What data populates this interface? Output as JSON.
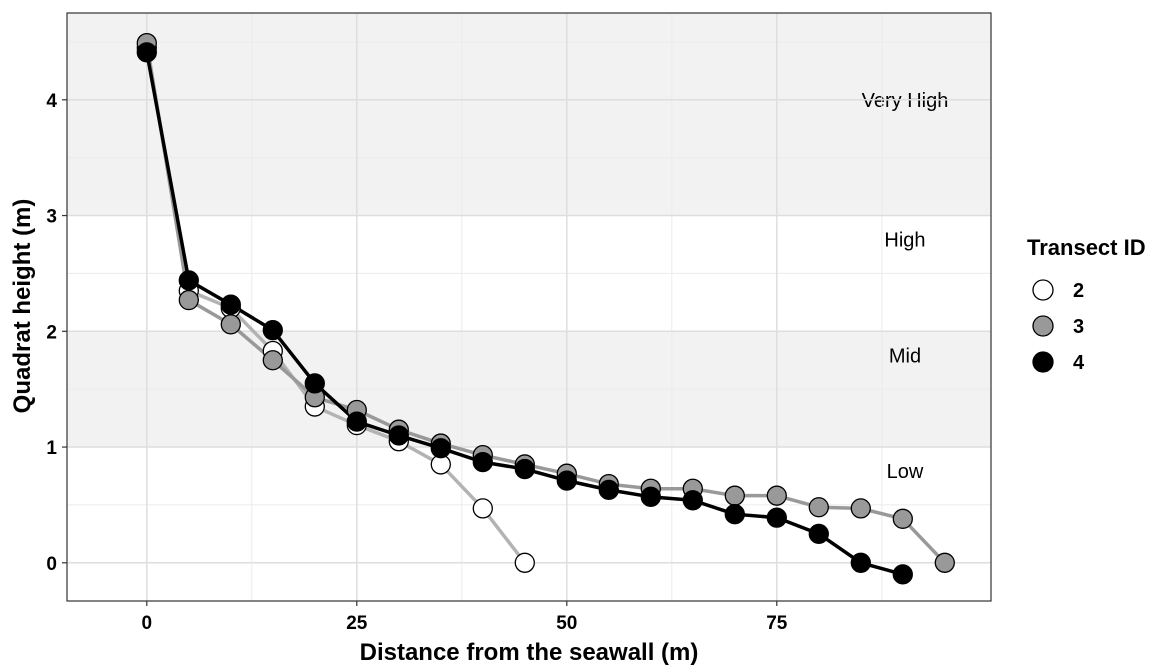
{
  "chart_data": {
    "type": "line",
    "title": "",
    "xlabel": "Distance from the seawall (m)",
    "ylabel": "Quadrat height (m)",
    "xlim": [
      -9.5,
      100.5
    ],
    "ylim": [
      -0.33,
      4.75
    ],
    "x_ticks": [
      0,
      25,
      50,
      75
    ],
    "y_ticks": [
      0,
      1,
      2,
      3,
      4
    ],
    "grid": true,
    "zones": [
      {
        "label": "Very High",
        "y_min": 3,
        "y_max": 4.75,
        "shaded": true
      },
      {
        "label": "High",
        "y_min": 2,
        "y_max": 3,
        "shaded": false
      },
      {
        "label": "Mid",
        "y_min": 1,
        "y_max": 2,
        "shaded": true
      },
      {
        "label": "Low",
        "y_min": -0.33,
        "y_max": 1,
        "shaded": false
      }
    ],
    "legend": {
      "title": "Transect ID",
      "position": "right"
    },
    "series": [
      {
        "name": "2",
        "point_color": "#ffffff",
        "line_color": "#b3b3b3",
        "x": [
          0,
          5,
          10,
          15,
          20,
          25,
          30,
          35,
          40,
          45
        ],
        "y": [
          4.45,
          2.35,
          2.2,
          1.83,
          1.35,
          1.19,
          1.05,
          0.85,
          0.47,
          0.0
        ]
      },
      {
        "name": "3",
        "point_color": "#999999",
        "line_color": "#999999",
        "x": [
          0,
          5,
          10,
          15,
          20,
          25,
          30,
          35,
          40,
          45,
          50,
          55,
          60,
          65,
          70,
          75,
          80,
          85,
          90,
          95
        ],
        "y": [
          4.49,
          2.27,
          2.06,
          1.75,
          1.43,
          1.32,
          1.15,
          1.03,
          0.93,
          0.85,
          0.77,
          0.68,
          0.64,
          0.64,
          0.58,
          0.58,
          0.48,
          0.47,
          0.38,
          0.0
        ]
      },
      {
        "name": "4",
        "point_color": "#000000",
        "line_color": "#000000",
        "x": [
          0,
          5,
          10,
          15,
          20,
          25,
          30,
          35,
          40,
          45,
          50,
          55,
          60,
          65,
          70,
          75,
          80,
          85,
          90
        ],
        "y": [
          4.41,
          2.44,
          2.23,
          2.01,
          1.55,
          1.22,
          1.1,
          0.99,
          0.87,
          0.81,
          0.71,
          0.63,
          0.57,
          0.54,
          0.42,
          0.39,
          0.25,
          0.0,
          -0.1
        ]
      }
    ]
  }
}
